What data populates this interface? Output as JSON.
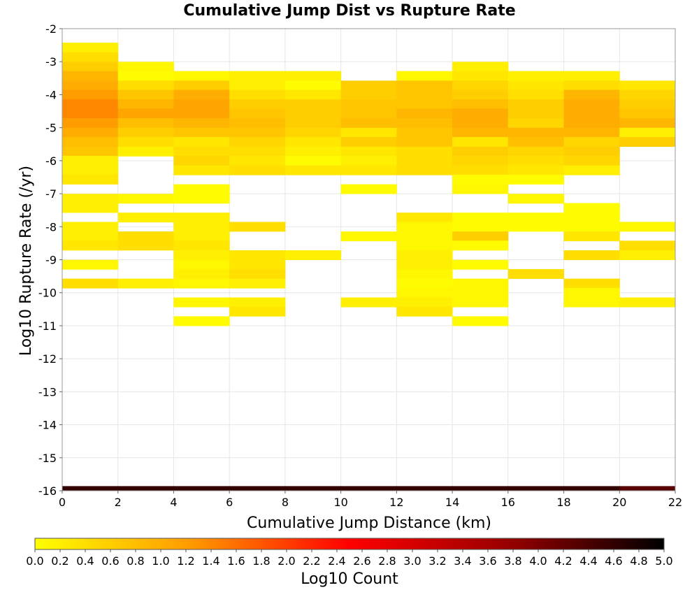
{
  "chart_data": {
    "type": "heatmap",
    "title": "Cumulative Jump Dist vs Rupture Rate",
    "xlabel": "Cumulative Jump Distance (km)",
    "ylabel": "Log10 Rupture Rate (/yr)",
    "xlim": [
      0,
      22
    ],
    "ylim": [
      -16,
      -2
    ],
    "x_ticks": [
      "0",
      "2",
      "4",
      "6",
      "8",
      "10",
      "12",
      "14",
      "16",
      "18",
      "20",
      "22"
    ],
    "y_ticks": [
      "-2",
      "-3",
      "-4",
      "-5",
      "-6",
      "-7",
      "-8",
      "-9",
      "-10",
      "-11",
      "-12",
      "-13",
      "-14",
      "-15",
      "-16"
    ],
    "grid": true,
    "bin_width": 2,
    "bin_height": 0.2857,
    "colorbar": {
      "label": "Log10 Count",
      "min": 0,
      "max": 5,
      "ticks": [
        "0.0",
        "0.2",
        "0.4",
        "0.6",
        "0.8",
        "1.0",
        "1.2",
        "1.4",
        "1.6",
        "1.8",
        "2.0",
        "2.2",
        "2.4",
        "2.6",
        "2.8",
        "3.0",
        "3.2",
        "3.4",
        "3.6",
        "3.8",
        "4.0",
        "4.2",
        "4.4",
        "4.6",
        "4.8",
        "5.0"
      ],
      "stops": [
        "#ffff00",
        "#ff9900",
        "#ff0000",
        "#990000",
        "#000000"
      ]
    },
    "columns": [
      {
        "x_start": 0,
        "rows": [
          [
            -2.71,
            0.2
          ],
          [
            -3.0,
            0.4
          ],
          [
            -3.29,
            0.6
          ],
          [
            -3.57,
            0.9
          ],
          [
            -3.86,
            1.0
          ],
          [
            -4.14,
            1.2
          ],
          [
            -4.43,
            1.4
          ],
          [
            -4.71,
            1.4
          ],
          [
            -5.0,
            1.2
          ],
          [
            -5.29,
            1.0
          ],
          [
            -5.57,
            0.8
          ],
          [
            -5.86,
            0.7
          ],
          [
            -6.14,
            0.2
          ],
          [
            -6.43,
            0.2
          ],
          [
            -6.71,
            0.3
          ],
          [
            -7.29,
            0.2
          ],
          [
            -7.57,
            0.2
          ],
          [
            -8.14,
            0.2
          ],
          [
            -8.43,
            0.2
          ],
          [
            -8.71,
            0.3
          ],
          [
            -9.29,
            0.1
          ],
          [
            -9.86,
            0.4
          ]
        ]
      },
      {
        "x_start": 2,
        "rows": [
          [
            -3.29,
            0.1
          ],
          [
            -3.57,
            0.05
          ],
          [
            -3.86,
            0.4
          ],
          [
            -4.14,
            0.7
          ],
          [
            -4.43,
            0.9
          ],
          [
            -4.71,
            1.1
          ],
          [
            -5.0,
            0.8
          ],
          [
            -5.29,
            0.6
          ],
          [
            -5.57,
            0.4
          ],
          [
            -5.86,
            0.2
          ],
          [
            -7.29,
            0.1
          ],
          [
            -7.86,
            0.2
          ],
          [
            -8.43,
            0.4
          ],
          [
            -8.71,
            0.4
          ],
          [
            -9.86,
            0.2
          ]
        ]
      },
      {
        "x_start": 4,
        "rows": [
          [
            -3.57,
            0.1
          ],
          [
            -3.86,
            0.6
          ],
          [
            -4.14,
            1.0
          ],
          [
            -4.43,
            1.1
          ],
          [
            -4.71,
            1.1
          ],
          [
            -5.0,
            0.9
          ],
          [
            -5.29,
            0.7
          ],
          [
            -5.57,
            0.3
          ],
          [
            -5.86,
            0.4
          ],
          [
            -6.14,
            0.5
          ],
          [
            -6.43,
            0.3
          ],
          [
            -7.0,
            0.05
          ],
          [
            -7.29,
            0.05
          ],
          [
            -7.86,
            0.2
          ],
          [
            -8.14,
            0.2
          ],
          [
            -8.43,
            0.2
          ],
          [
            -8.71,
            0.3
          ],
          [
            -9.0,
            0.2
          ],
          [
            -9.29,
            0.1
          ],
          [
            -9.57,
            0.2
          ],
          [
            -9.86,
            0.1
          ],
          [
            -10.43,
            0.1
          ],
          [
            -11.0,
            0.05
          ]
        ]
      },
      {
        "x_start": 6,
        "rows": [
          [
            -3.57,
            0.2
          ],
          [
            -3.86,
            0.2
          ],
          [
            -4.14,
            0.4
          ],
          [
            -4.43,
            0.6
          ],
          [
            -4.71,
            0.7
          ],
          [
            -5.0,
            0.8
          ],
          [
            -5.29,
            0.7
          ],
          [
            -5.57,
            0.5
          ],
          [
            -5.86,
            0.4
          ],
          [
            -6.14,
            0.3
          ],
          [
            -6.43,
            0.4
          ],
          [
            -8.14,
            0.4
          ],
          [
            -9.0,
            0.3
          ],
          [
            -9.29,
            0.3
          ],
          [
            -9.57,
            0.4
          ],
          [
            -9.86,
            0.2
          ],
          [
            -10.43,
            0.2
          ],
          [
            -10.71,
            0.3
          ]
        ]
      },
      {
        "x_start": 8,
        "rows": [
          [
            -3.57,
            0.2
          ],
          [
            -3.86,
            0.05
          ],
          [
            -4.14,
            0.3
          ],
          [
            -4.43,
            0.6
          ],
          [
            -4.71,
            0.6
          ],
          [
            -5.0,
            0.6
          ],
          [
            -5.29,
            0.5
          ],
          [
            -5.57,
            0.3
          ],
          [
            -5.86,
            0.2
          ],
          [
            -6.14,
            0.05
          ],
          [
            -6.43,
            0.3
          ],
          [
            -9.0,
            0.2
          ]
        ]
      },
      {
        "x_start": 10,
        "rows": [
          [
            -3.86,
            0.6
          ],
          [
            -4.14,
            0.6
          ],
          [
            -4.43,
            0.7
          ],
          [
            -4.71,
            0.7
          ],
          [
            -5.0,
            0.8
          ],
          [
            -5.29,
            0.3
          ],
          [
            -5.57,
            0.6
          ],
          [
            -5.86,
            0.3
          ],
          [
            -6.14,
            0.2
          ],
          [
            -6.43,
            0.3
          ],
          [
            -7.0,
            0.05
          ],
          [
            -8.43,
            0.1
          ],
          [
            -10.43,
            0.2
          ]
        ]
      },
      {
        "x_start": 12,
        "rows": [
          [
            -3.57,
            0.1
          ],
          [
            -3.86,
            0.7
          ],
          [
            -4.14,
            0.7
          ],
          [
            -4.43,
            0.7
          ],
          [
            -4.71,
            0.9
          ],
          [
            -5.0,
            0.8
          ],
          [
            -5.29,
            0.7
          ],
          [
            -5.57,
            0.7
          ],
          [
            -5.86,
            0.4
          ],
          [
            -6.14,
            0.4
          ],
          [
            -6.43,
            0.4
          ],
          [
            -7.86,
            0.3
          ],
          [
            -8.14,
            0.1
          ],
          [
            -8.43,
            0.1
          ],
          [
            -8.71,
            0.1
          ],
          [
            -9.0,
            0.2
          ],
          [
            -9.29,
            0.2
          ],
          [
            -9.57,
            0.1
          ],
          [
            -9.86,
            0.05
          ],
          [
            -10.14,
            0.1
          ],
          [
            -10.43,
            0.2
          ],
          [
            -10.71,
            0.3
          ]
        ]
      },
      {
        "x_start": 14,
        "rows": [
          [
            -3.29,
            0.2
          ],
          [
            -3.57,
            0.3
          ],
          [
            -3.86,
            0.5
          ],
          [
            -4.14,
            0.6
          ],
          [
            -4.43,
            0.8
          ],
          [
            -4.71,
            1.0
          ],
          [
            -5.0,
            1.0
          ],
          [
            -5.29,
            0.9
          ],
          [
            -5.57,
            0.3
          ],
          [
            -5.86,
            0.6
          ],
          [
            -6.14,
            0.5
          ],
          [
            -6.43,
            0.4
          ],
          [
            -6.71,
            0.05
          ],
          [
            -7.0,
            0.1
          ],
          [
            -7.86,
            0.05
          ],
          [
            -8.14,
            0.05
          ],
          [
            -8.43,
            0.6
          ],
          [
            -8.71,
            0.05
          ],
          [
            -9.29,
            0.05
          ],
          [
            -9.86,
            0.1
          ],
          [
            -10.14,
            0.1
          ],
          [
            -10.43,
            0.1
          ],
          [
            -11.0,
            0.05
          ]
        ]
      },
      {
        "x_start": 16,
        "rows": [
          [
            -3.57,
            0.2
          ],
          [
            -3.86,
            0.3
          ],
          [
            -4.14,
            0.4
          ],
          [
            -4.43,
            0.6
          ],
          [
            -4.71,
            0.6
          ],
          [
            -5.0,
            0.5
          ],
          [
            -5.29,
            0.9
          ],
          [
            -5.57,
            0.8
          ],
          [
            -5.86,
            0.5
          ],
          [
            -6.14,
            0.4
          ],
          [
            -6.43,
            0.3
          ],
          [
            -6.71,
            0.05
          ],
          [
            -7.29,
            0.1
          ],
          [
            -7.86,
            0.05
          ],
          [
            -8.14,
            0.05
          ],
          [
            -9.57,
            0.4
          ]
        ]
      },
      {
        "x_start": 18,
        "rows": [
          [
            -3.57,
            0.2
          ],
          [
            -3.86,
            0.4
          ],
          [
            -4.14,
            0.9
          ],
          [
            -4.43,
            1.0
          ],
          [
            -4.71,
            1.0
          ],
          [
            -5.0,
            1.0
          ],
          [
            -5.29,
            0.9
          ],
          [
            -5.57,
            0.5
          ],
          [
            -5.86,
            0.6
          ],
          [
            -6.14,
            0.5
          ],
          [
            -6.43,
            0.2
          ],
          [
            -7.57,
            0.05
          ],
          [
            -7.86,
            0.05
          ],
          [
            -8.14,
            0.05
          ],
          [
            -8.43,
            0.3
          ],
          [
            -9.0,
            0.4
          ],
          [
            -9.86,
            0.4
          ],
          [
            -10.14,
            0.1
          ],
          [
            -10.43,
            0.1
          ]
        ]
      },
      {
        "x_start": 20,
        "rows": [
          [
            -3.86,
            0.3
          ],
          [
            -4.14,
            0.5
          ],
          [
            -4.43,
            0.6
          ],
          [
            -4.71,
            0.7
          ],
          [
            -5.0,
            0.9
          ],
          [
            -5.29,
            0.2
          ],
          [
            -5.57,
            0.6
          ],
          [
            -8.14,
            0.1
          ],
          [
            -8.71,
            0.4
          ],
          [
            -9.0,
            0.2
          ],
          [
            -10.43,
            0.2
          ]
        ]
      }
    ],
    "bottom_row": {
      "y_start": -16.0,
      "height": 0.14,
      "values": [
        4.6,
        4.6,
        4.6,
        4.6,
        4.6,
        4.6,
        4.6,
        4.6,
        4.6,
        4.6,
        4.3
      ]
    }
  }
}
